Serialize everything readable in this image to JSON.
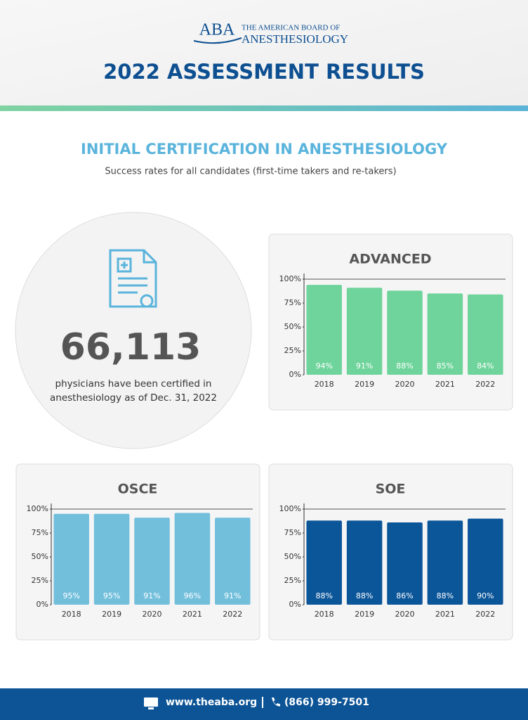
{
  "header": {
    "logo_abbr": "ABA",
    "logo_line1": "THE AMERICAN BOARD OF",
    "logo_line2": "ANESTHESIOLOGY",
    "title": "2022 ASSESSMENT RESULTS"
  },
  "section": {
    "title": "INITIAL CERTIFICATION IN ANESTHESIOLOGY",
    "subtitle": "Success rates for all candidates (first-time takers and re-takers)"
  },
  "stat": {
    "value": "66,113",
    "caption_lines": [
      "physicians have been certified in",
      "anesthesiology as of Dec. 31, 2022"
    ]
  },
  "chart_data": [
    {
      "type": "bar",
      "title": "ADVANCED",
      "categories": [
        "2018",
        "2019",
        "2020",
        "2021",
        "2022"
      ],
      "values": [
        94,
        91,
        88,
        85,
        84
      ],
      "value_labels": [
        "94%",
        "91%",
        "88%",
        "85%",
        "84%"
      ],
      "color": "#6fd49b",
      "ylim": [
        0,
        100
      ],
      "yticks": [
        {
          "value": 0,
          "label": "0%"
        },
        {
          "value": 25,
          "label": "25%"
        },
        {
          "value": 50,
          "label": "50%"
        },
        {
          "value": 75,
          "label": "75%"
        },
        {
          "value": 100,
          "label": "100%"
        }
      ]
    },
    {
      "type": "bar",
      "title": "OSCE",
      "categories": [
        "2018",
        "2019",
        "2020",
        "2021",
        "2022"
      ],
      "values": [
        95,
        95,
        91,
        96,
        91
      ],
      "value_labels": [
        "95%",
        "95%",
        "91%",
        "96%",
        "91%"
      ],
      "color": "#72bfdc",
      "ylim": [
        0,
        100
      ],
      "yticks": [
        {
          "value": 0,
          "label": "0%"
        },
        {
          "value": 25,
          "label": "25%"
        },
        {
          "value": 50,
          "label": "50%"
        },
        {
          "value": 75,
          "label": "75%"
        },
        {
          "value": 100,
          "label": "100%"
        }
      ]
    },
    {
      "type": "bar",
      "title": "SOE",
      "categories": [
        "2018",
        "2019",
        "2020",
        "2021",
        "2022"
      ],
      "values": [
        88,
        88,
        86,
        88,
        90
      ],
      "value_labels": [
        "88%",
        "88%",
        "86%",
        "88%",
        "90%"
      ],
      "color": "#0b5599",
      "ylim": [
        0,
        100
      ],
      "yticks": [
        {
          "value": 0,
          "label": "0%"
        },
        {
          "value": 25,
          "label": "25%"
        },
        {
          "value": 50,
          "label": "50%"
        },
        {
          "value": 75,
          "label": "75%"
        },
        {
          "value": 100,
          "label": "100%"
        }
      ]
    }
  ],
  "footer": {
    "website": "www.theaba.org",
    "phone": "(866) 999-7501"
  }
}
